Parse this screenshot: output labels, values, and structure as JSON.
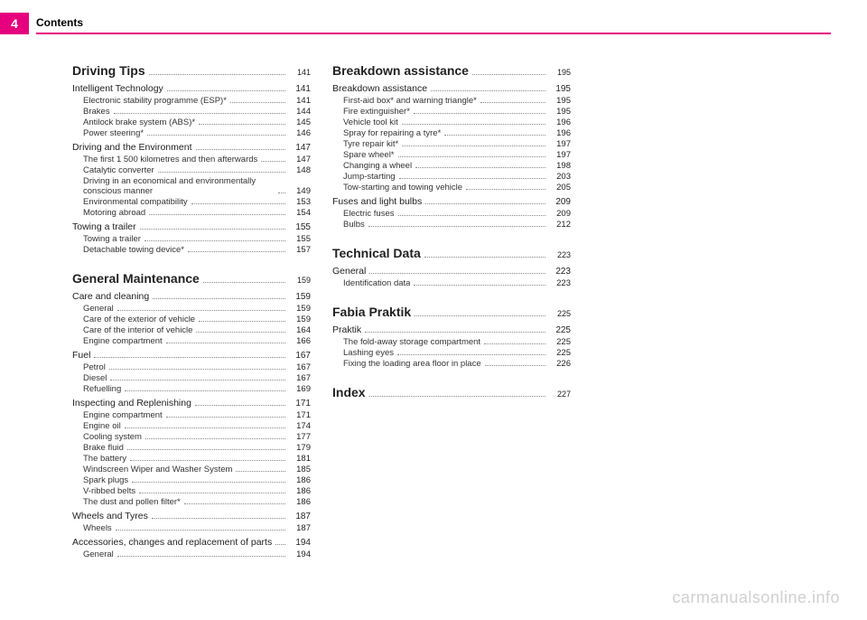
{
  "page_number": "4",
  "header_title": "Contents",
  "watermark": "carmanualsonline.info",
  "colors": {
    "accent": "#e6007e",
    "text": "#222222",
    "dots": "#888888",
    "watermark": "#d0d0d0",
    "bg": "#ffffff"
  },
  "toc": [
    {
      "level": 0,
      "label": "Driving Tips",
      "page": "141",
      "first": true
    },
    {
      "level": 1,
      "label": "Intelligent Technology",
      "page": "141"
    },
    {
      "level": 2,
      "label": "Electronic stability programme (ESP)*",
      "page": "141"
    },
    {
      "level": 2,
      "label": "Brakes",
      "page": "144"
    },
    {
      "level": 2,
      "label": "Antilock brake system (ABS)*",
      "page": "145"
    },
    {
      "level": 2,
      "label": "Power steering*",
      "page": "146"
    },
    {
      "level": 1,
      "label": "Driving and the Environment",
      "page": "147"
    },
    {
      "level": 2,
      "label": "The first 1 500 kilometres and then afterwards",
      "page": "147"
    },
    {
      "level": 2,
      "label": "Catalytic converter",
      "page": "148"
    },
    {
      "level": 2,
      "label": "Driving in an economical and environmentally conscious manner",
      "page": "149"
    },
    {
      "level": 2,
      "label": "Environmental compatibility",
      "page": "153"
    },
    {
      "level": 2,
      "label": "Motoring abroad",
      "page": "154"
    },
    {
      "level": 1,
      "label": "Towing a trailer",
      "page": "155"
    },
    {
      "level": 2,
      "label": "Towing a trailer",
      "page": "155"
    },
    {
      "level": 2,
      "label": "Detachable towing device*",
      "page": "157"
    },
    {
      "level": 0,
      "label": "General Maintenance",
      "page": "159"
    },
    {
      "level": 1,
      "label": "Care and cleaning",
      "page": "159"
    },
    {
      "level": 2,
      "label": "General",
      "page": "159"
    },
    {
      "level": 2,
      "label": "Care of the exterior of vehicle",
      "page": "159"
    },
    {
      "level": 2,
      "label": "Care of the interior of vehicle",
      "page": "164"
    },
    {
      "level": 2,
      "label": "Engine compartment",
      "page": "166"
    },
    {
      "level": 1,
      "label": "Fuel",
      "page": "167"
    },
    {
      "level": 2,
      "label": "Petrol",
      "page": "167"
    },
    {
      "level": 2,
      "label": "Diesel",
      "page": "167"
    },
    {
      "level": 2,
      "label": "Refuelling",
      "page": "169"
    },
    {
      "level": 1,
      "label": "Inspecting and Replenishing",
      "page": "171"
    },
    {
      "level": 2,
      "label": "Engine compartment",
      "page": "171"
    },
    {
      "level": 2,
      "label": "Engine oil",
      "page": "174"
    },
    {
      "level": 2,
      "label": "Cooling system",
      "page": "177"
    },
    {
      "level": 2,
      "label": "Brake fluid",
      "page": "179"
    },
    {
      "level": 2,
      "label": "The battery",
      "page": "181"
    },
    {
      "level": 2,
      "label": "Windscreen Wiper and Washer System",
      "page": "185"
    },
    {
      "level": 2,
      "label": "Spark plugs",
      "page": "186"
    },
    {
      "level": 2,
      "label": "V-ribbed belts",
      "page": "186"
    },
    {
      "level": 2,
      "label": "The dust and pollen filter*",
      "page": "186"
    },
    {
      "level": 1,
      "label": "Wheels and Tyres",
      "page": "187"
    },
    {
      "level": 2,
      "label": "Wheels",
      "page": "187"
    },
    {
      "level": 1,
      "label": "Accessories, changes and replacement of parts",
      "page": "194"
    },
    {
      "level": 2,
      "label": "General",
      "page": "194"
    },
    {
      "level": 0,
      "label": "Breakdown assistance",
      "page": "195"
    },
    {
      "level": 1,
      "label": "Breakdown assistance",
      "page": "195"
    },
    {
      "level": 2,
      "label": "First-aid box* and warning triangle*",
      "page": "195"
    },
    {
      "level": 2,
      "label": "Fire extinguisher*",
      "page": "195"
    },
    {
      "level": 2,
      "label": "Vehicle tool kit",
      "page": "196"
    },
    {
      "level": 2,
      "label": "Spray for repairing a tyre*",
      "page": "196"
    },
    {
      "level": 2,
      "label": "Tyre repair kit*",
      "page": "197"
    },
    {
      "level": 2,
      "label": "Spare wheel*",
      "page": "197"
    },
    {
      "level": 2,
      "label": "Changing a wheel",
      "page": "198"
    },
    {
      "level": 2,
      "label": "Jump-starting",
      "page": "203"
    },
    {
      "level": 2,
      "label": "Tow-starting and towing vehicle",
      "page": "205"
    },
    {
      "level": 1,
      "label": "Fuses and light bulbs",
      "page": "209"
    },
    {
      "level": 2,
      "label": "Electric fuses",
      "page": "209"
    },
    {
      "level": 2,
      "label": "Bulbs",
      "page": "212"
    },
    {
      "level": 0,
      "label": "Technical Data",
      "page": "223"
    },
    {
      "level": 1,
      "label": "General",
      "page": "223"
    },
    {
      "level": 2,
      "label": "Identification data",
      "page": "223"
    },
    {
      "level": 0,
      "label": "Fabia Praktik",
      "page": "225"
    },
    {
      "level": 1,
      "label": "Praktik",
      "page": "225"
    },
    {
      "level": 2,
      "label": "The fold-away storage compartment",
      "page": "225"
    },
    {
      "level": 2,
      "label": "Lashing eyes",
      "page": "225"
    },
    {
      "level": 2,
      "label": "Fixing the loading area floor in place",
      "page": "226"
    },
    {
      "level": 0,
      "label": "Index",
      "page": "227"
    }
  ]
}
